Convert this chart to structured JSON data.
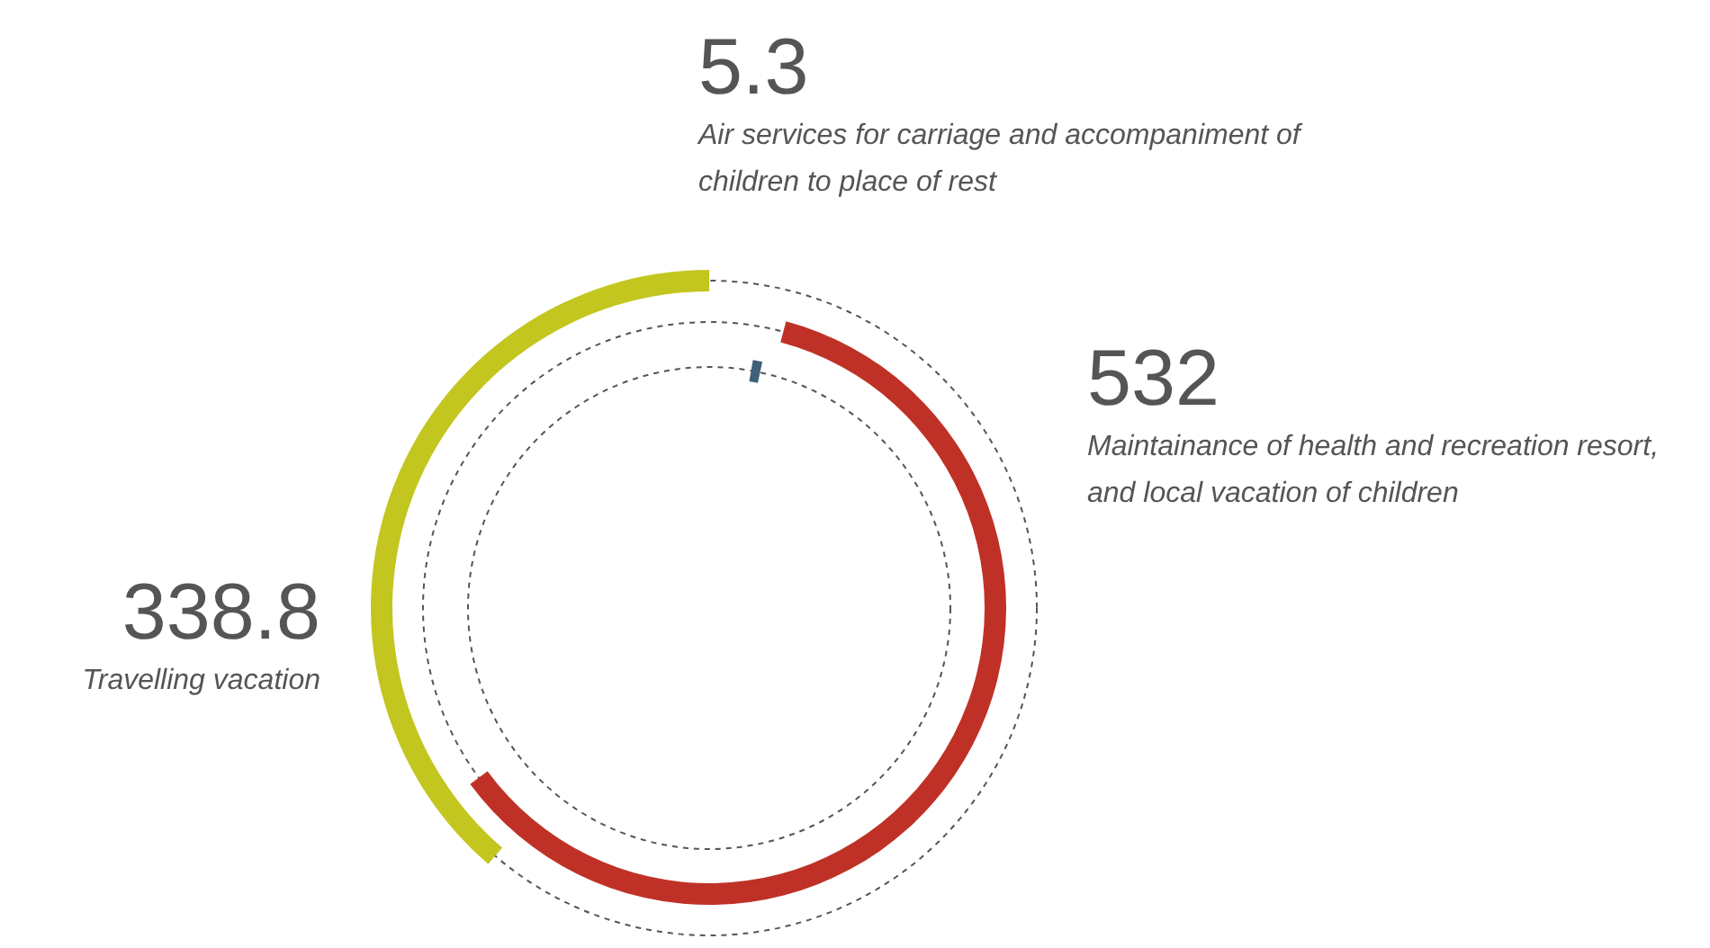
{
  "chart_data": {
    "type": "other",
    "categories": [
      "Air services for carriage and accompaniment of children to place of rest",
      "Maintainance of health and recreation resort, and local vacation of children",
      "Travelling vacation"
    ],
    "values": [
      5.3,
      532,
      338.8
    ],
    "colors": [
      "#3d6178",
      "#bf3126",
      "#c3c61f"
    ],
    "data_labels": true
  }
}
